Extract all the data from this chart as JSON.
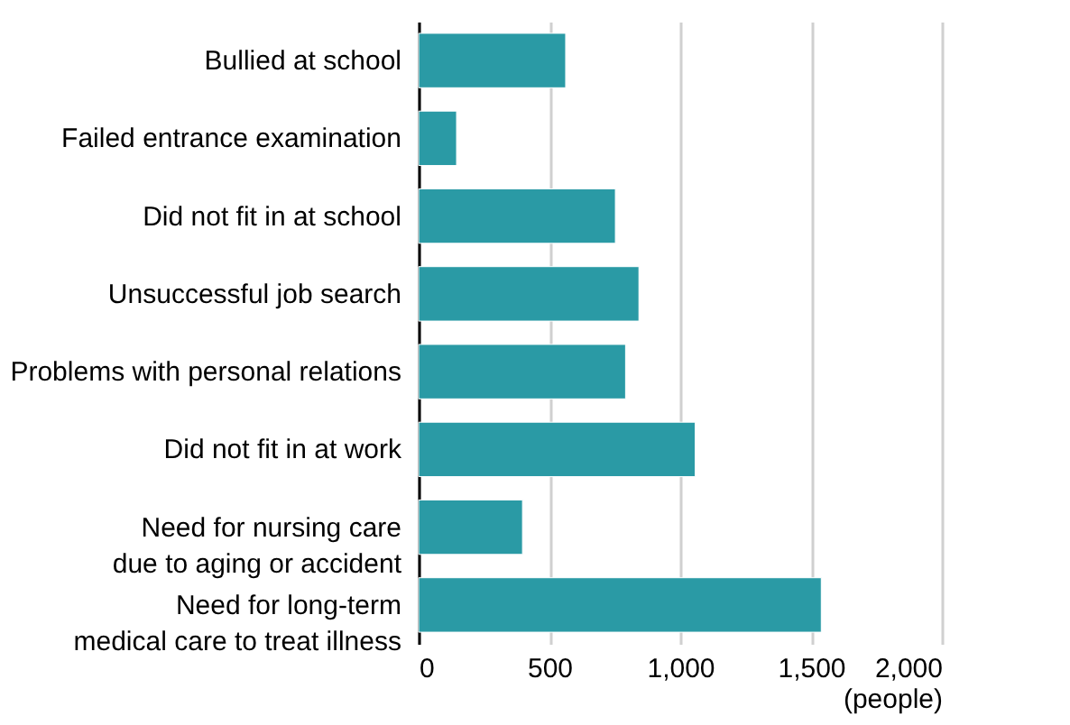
{
  "chart_data": {
    "type": "bar",
    "orientation": "horizontal",
    "categories": [
      "Bullied at school",
      "Failed entrance examination",
      "Did not fit in at school",
      "Unsuccessful job search",
      "Problems with personal relations",
      "Did not fit in at work",
      "Need for nursing care\ndue to aging or accident",
      "Need for long-term\nmedical care to treat illness"
    ],
    "values": [
      562,
      145,
      752,
      842,
      791,
      1057,
      397,
      1539
    ],
    "color": "#2a9aa5",
    "xlim": [
      0,
      2000
    ],
    "xticks": [
      0,
      500,
      {
        "value": 1000,
        "label": "1,000"
      },
      {
        "value": 1500,
        "label": "1,500"
      },
      {
        "value": 2000,
        "label": "2,000"
      }
    ],
    "xlabel": "(people)",
    "grid": "x"
  }
}
